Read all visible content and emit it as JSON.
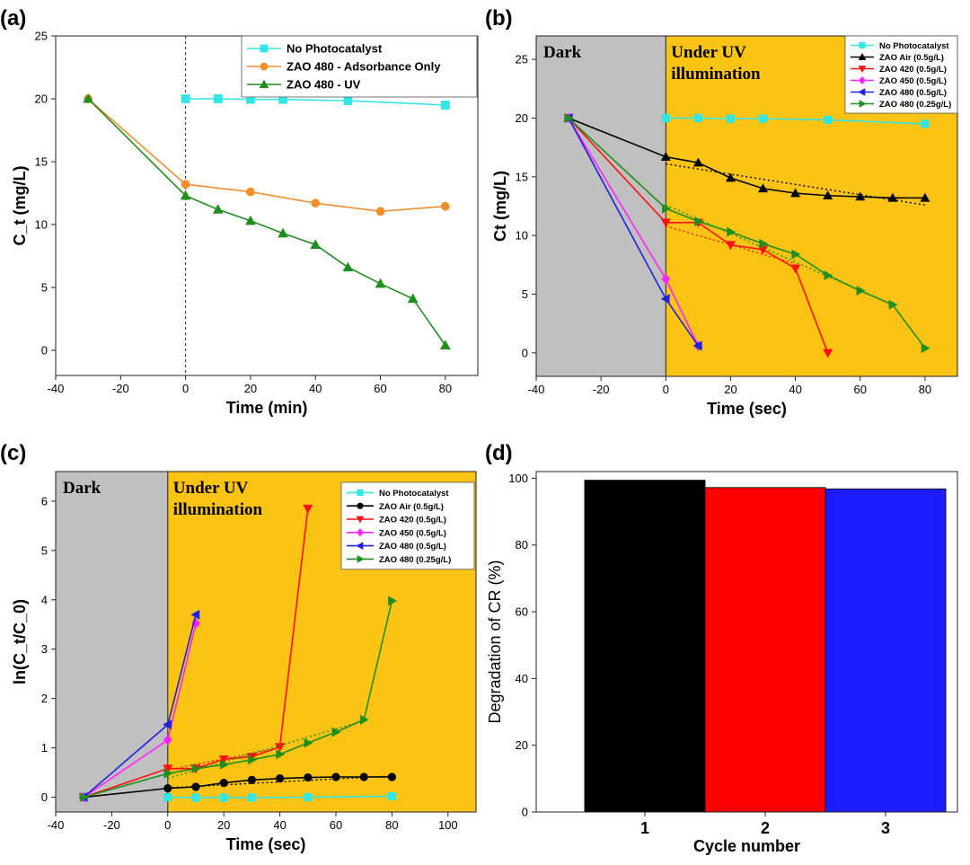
{
  "panel_labels": [
    "(a)",
    "(b)",
    "(c)",
    "(d)"
  ],
  "colors": {
    "cyan": "#33e6e6",
    "orange": "#f0902c",
    "green": "#1f8f1f",
    "black": "#000000",
    "red": "#ff1010",
    "magenta": "#ff22ff",
    "blue": "#2020e0",
    "dark_bg": "#c0c0c0",
    "uv_bg": "#fbc314"
  },
  "chart_data": [
    {
      "id": "a",
      "type": "line",
      "xlabel": "Time (min)",
      "ylabel": "C_t (mg/L)",
      "xlim": [
        -40,
        90
      ],
      "ylim": [
        -2,
        25
      ],
      "xticks": [
        -40,
        -20,
        0,
        20,
        40,
        60,
        80
      ],
      "yticks": [
        0,
        5,
        10,
        15,
        20,
        25
      ],
      "vline": 0,
      "legend_position": "top-right",
      "series": [
        {
          "name": "No Photocatalyst",
          "marker": "square",
          "color": "#33e6e6",
          "x": [
            0,
            10,
            20,
            30,
            50,
            80
          ],
          "y": [
            20,
            20,
            19.95,
            19.95,
            19.85,
            19.5
          ]
        },
        {
          "name": "ZAO 480 - Adsorbance Only",
          "marker": "circle",
          "color": "#f0902c",
          "x": [
            -30,
            0,
            20,
            40,
            60,
            80
          ],
          "y": [
            20,
            13.2,
            12.6,
            11.7,
            11.05,
            11.45
          ]
        },
        {
          "name": "ZAO 480 - UV",
          "marker": "triangle-up",
          "color": "#1f8f1f",
          "x": [
            -30,
            0,
            10,
            20,
            30,
            40,
            50,
            60,
            70,
            80
          ],
          "y": [
            20,
            12.3,
            11.2,
            10.3,
            9.3,
            8.4,
            6.6,
            5.3,
            4.1,
            0.4
          ]
        }
      ]
    },
    {
      "id": "b",
      "type": "line",
      "xlabel": "Time (sec)",
      "ylabel": "Ct (mg/L)",
      "xlim": [
        -40,
        90
      ],
      "ylim": [
        -2,
        27
      ],
      "xticks": [
        -40,
        -20,
        0,
        20,
        40,
        60,
        80
      ],
      "yticks": [
        0,
        5,
        10,
        15,
        20,
        25
      ],
      "regions": [
        {
          "label": "Dark",
          "from": -40,
          "to": 0
        },
        {
          "label_lines": [
            "Under UV",
            "illumination"
          ],
          "from": 0,
          "to": 90
        }
      ],
      "legend_position": "top-right",
      "series": [
        {
          "name": "No Photocatalyst",
          "marker": "square",
          "color": "#33e6e6",
          "x": [
            0,
            10,
            20,
            30,
            50,
            80
          ],
          "y": [
            20,
            20,
            19.95,
            19.95,
            19.85,
            19.5
          ]
        },
        {
          "name": "ZAO Air (0.5g/L)",
          "marker": "triangle-up",
          "color": "#000000",
          "x": [
            -30,
            0,
            10,
            20,
            30,
            40,
            50,
            60,
            70,
            80
          ],
          "y": [
            20,
            16.7,
            16.2,
            14.9,
            14.0,
            13.6,
            13.4,
            13.3,
            13.2,
            13.2
          ],
          "fit": {
            "x": [
              0,
              80
            ],
            "y": [
              16.1,
              12.6
            ]
          }
        },
        {
          "name": "ZAO 420 (0.5g/L)",
          "marker": "triangle-down",
          "color": "#ff1010",
          "x": [
            -30,
            0,
            10,
            20,
            30,
            40,
            50
          ],
          "y": [
            20,
            11.1,
            11.1,
            9.2,
            8.8,
            7.2,
            0
          ],
          "fit": {
            "x": [
              0,
              40
            ],
            "y": [
              10.8,
              7.6
            ]
          }
        },
        {
          "name": "ZAO 450 (0.5g/L)",
          "marker": "diamond",
          "color": "#ff22ff",
          "x": [
            -30,
            0,
            10
          ],
          "y": [
            20,
            6.3,
            0.6
          ]
        },
        {
          "name": "ZAO 480 (0.5g/L)",
          "marker": "triangle-left",
          "color": "#2020e0",
          "x": [
            -30,
            0,
            10
          ],
          "y": [
            20,
            4.6,
            0.6
          ]
        },
        {
          "name": "ZAO 480 (0.25g/L)",
          "marker": "triangle-right",
          "color": "#1f8f1f",
          "x": [
            -30,
            0,
            10,
            20,
            30,
            40,
            50,
            60,
            70,
            80
          ],
          "y": [
            20,
            12.3,
            11.2,
            10.3,
            9.3,
            8.4,
            6.6,
            5.3,
            4.1,
            0.4
          ],
          "fit": {
            "x": [
              0,
              70
            ],
            "y": [
              12.6,
              4.1
            ]
          }
        }
      ]
    },
    {
      "id": "c",
      "type": "line",
      "xlabel": "Time (sec)",
      "ylabel": "ln(C_t/C_0)",
      "xlim": [
        -40,
        110
      ],
      "ylim": [
        -0.3,
        6.6
      ],
      "xticks": [
        -40,
        -20,
        0,
        20,
        40,
        60,
        80,
        100
      ],
      "yticks": [
        0,
        1,
        2,
        3,
        4,
        5,
        6
      ],
      "regions": [
        {
          "label": "Dark",
          "from": -40,
          "to": 0
        },
        {
          "label_lines": [
            "Under UV",
            "illumination"
          ],
          "from": 0,
          "to": 110
        }
      ],
      "legend_position": "top-right",
      "series": [
        {
          "name": "No Photocatalyst",
          "marker": "square",
          "color": "#33e6e6",
          "x": [
            0,
            10,
            20,
            30,
            50,
            80
          ],
          "y": [
            0,
            -0.01,
            -0.01,
            -0.01,
            0,
            0.02
          ]
        },
        {
          "name": "ZAO Air (0.5g/L)",
          "marker": "circle",
          "color": "#000000",
          "x": [
            -30,
            0,
            10,
            20,
            30,
            40,
            50,
            60,
            70,
            80
          ],
          "y": [
            0,
            0.18,
            0.21,
            0.29,
            0.35,
            0.38,
            0.4,
            0.41,
            0.41,
            0.41
          ],
          "fit": {
            "x": [
              0,
              80
            ],
            "y": [
              0.19,
              0.43
            ]
          }
        },
        {
          "name": "ZAO 420 (0.5g/L)",
          "marker": "triangle-down",
          "color": "#ff1010",
          "x": [
            -30,
            0,
            10,
            20,
            30,
            40,
            50
          ],
          "y": [
            0,
            0.58,
            0.58,
            0.77,
            0.82,
            1.02,
            5.85
          ],
          "fit": {
            "x": [
              0,
              40
            ],
            "y": [
              0.55,
              1.0
            ]
          }
        },
        {
          "name": "ZAO 450 (0.5g/L)",
          "marker": "diamond",
          "color": "#ff22ff",
          "x": [
            -30,
            0,
            10
          ],
          "y": [
            0,
            1.16,
            3.52
          ]
        },
        {
          "name": "ZAO 480 (0.5g/L)",
          "marker": "triangle-left",
          "color": "#2020e0",
          "x": [
            -30,
            0,
            10
          ],
          "y": [
            0,
            1.47,
            3.7
          ]
        },
        {
          "name": "ZAO 480 (0.25g/L)",
          "marker": "triangle-right",
          "color": "#1f8f1f",
          "x": [
            -30,
            0,
            10,
            20,
            30,
            40,
            50,
            60,
            70,
            80
          ],
          "y": [
            0,
            0.48,
            0.58,
            0.66,
            0.76,
            0.87,
            1.1,
            1.32,
            1.57,
            3.98
          ],
          "fit": {
            "x": [
              0,
              70
            ],
            "y": [
              0.38,
              1.55
            ]
          }
        }
      ]
    },
    {
      "id": "d",
      "type": "bar",
      "xlabel": "Cycle number",
      "ylabel": "Degradation of CR (%)",
      "ylim": [
        0,
        102
      ],
      "yticks": [
        0,
        20,
        40,
        60,
        80,
        100
      ],
      "categories": [
        "1",
        "2",
        "3"
      ],
      "values": [
        99.4,
        97.2,
        96.8
      ],
      "bar_colors": [
        "#000000",
        "#ff0000",
        "#1c1cff"
      ]
    }
  ]
}
